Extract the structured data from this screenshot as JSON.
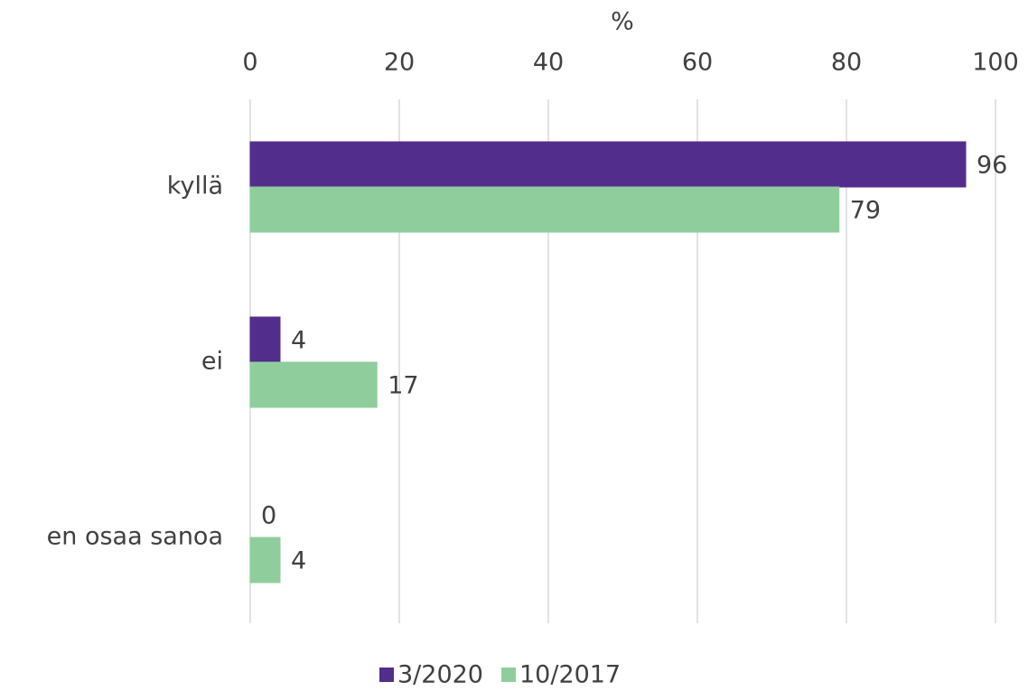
{
  "chart_data": {
    "type": "hbar",
    "x_label": "%",
    "categories": [
      "kyllä",
      "ei",
      "en osaa sanoa"
    ],
    "series": [
      {
        "name": "3/2020",
        "color": "#532d8c",
        "values": [
          96,
          4,
          0
        ]
      },
      {
        "name": "10/2017",
        "color": "#8fce9c",
        "values": [
          79,
          17,
          4
        ]
      }
    ],
    "xlim": [
      0,
      100
    ],
    "xticks": [
      0,
      20,
      40,
      60,
      80,
      100
    ],
    "grid": true,
    "legend": "bottom"
  }
}
